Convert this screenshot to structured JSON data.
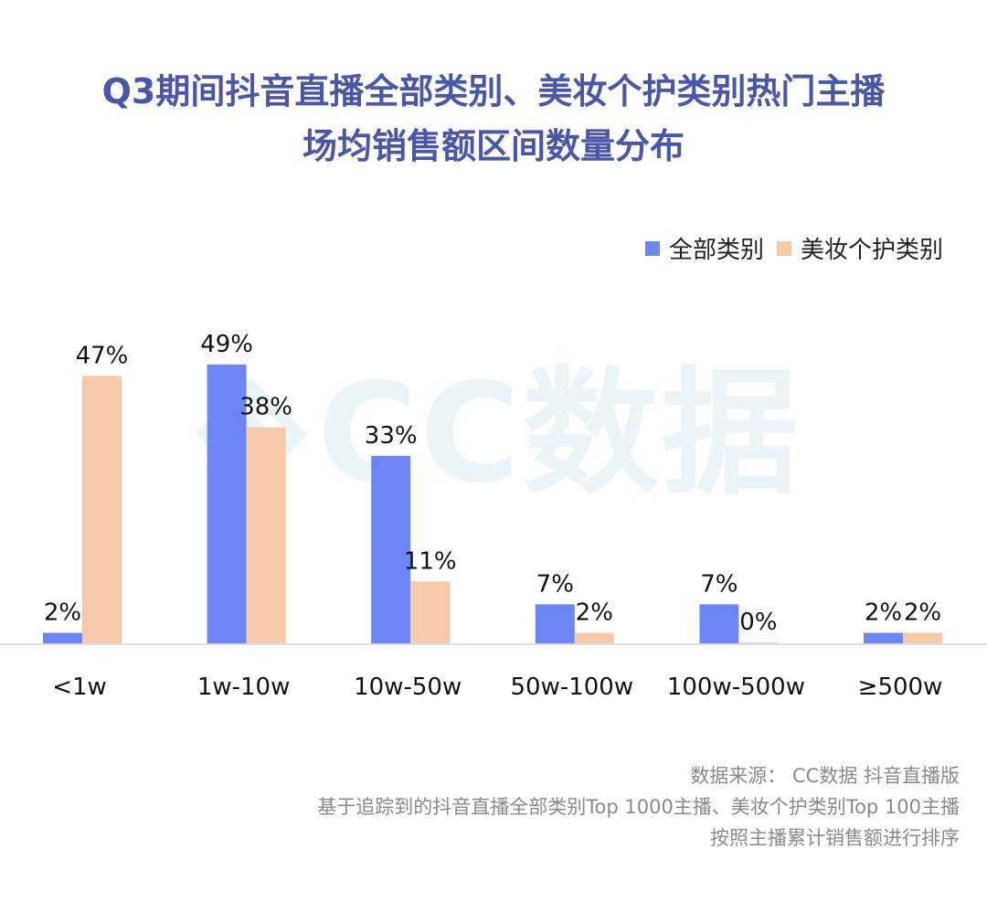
{
  "chart_data": {
    "type": "bar",
    "title": "Q3期间抖音直播全部类别、美妆个护类别热门主播场均销售额区间数量分布",
    "title_lines": [
      "Q3期间抖音直播全部类别、美妆个护类别热门主播",
      "场均销售额区间数量分布"
    ],
    "categories": [
      "<1w",
      "1w-10w",
      "10w-50w",
      "50w-100w",
      "100w-500w",
      "≥500w"
    ],
    "series": [
      {
        "name": "全部类别",
        "color": "#6d86f5",
        "values": [
          2,
          49,
          33,
          7,
          7,
          2
        ],
        "labels": [
          "2%",
          "49%",
          "33%",
          "7%",
          "7%",
          "2%"
        ]
      },
      {
        "name": "美妆个护类别",
        "color": "#f6c9a9",
        "values": [
          47,
          38,
          11,
          2,
          0,
          2
        ],
        "labels": [
          "47%",
          "38%",
          "11%",
          "2%",
          "0%",
          "2%"
        ]
      }
    ],
    "xlabel": "",
    "ylabel": "",
    "ylim": [
      0,
      49
    ],
    "grid": false,
    "legend_position": "top-right"
  },
  "watermark": {
    "text": "CC数据",
    "icon": "cc-data-logo-icon"
  },
  "footnote": {
    "lines": [
      "数据来源：  CC数据  抖音直播版",
      "基于追踪到的抖音直播全部类别Top 1000主播、美妆个护类别Top 100主播",
      "按照主播累计销售额进行排序"
    ]
  }
}
